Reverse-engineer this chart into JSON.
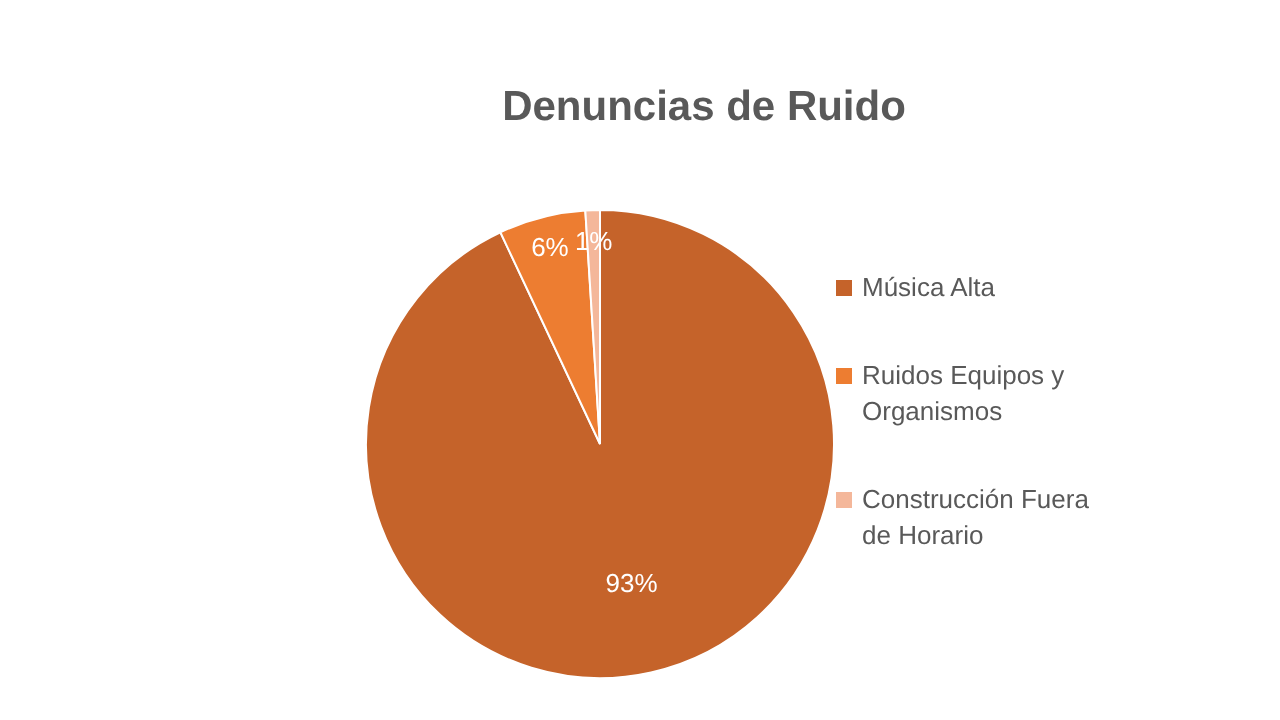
{
  "chart_data": {
    "type": "pie",
    "title": "Denuncias de Ruido",
    "categories": [
      "Música Alta",
      "Ruidos Equipos y Organismos",
      "Construcción Fuera de Horario"
    ],
    "values": [
      93,
      6,
      1
    ],
    "colors": [
      "#c5632a",
      "#ed7d31",
      "#f4b79a"
    ],
    "value_labels": [
      "93%",
      "6%",
      "1%"
    ],
    "legend": "right"
  }
}
